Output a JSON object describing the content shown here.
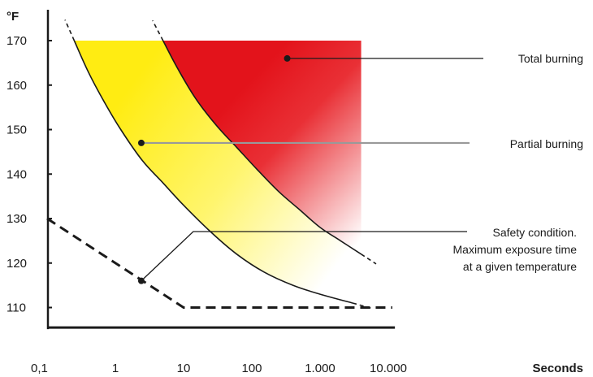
{
  "chart_data": {
    "type": "area",
    "y_unit": "°F",
    "x_unit": "Seconds",
    "x_scale": "log",
    "x_ticks": [
      "0,1",
      "1",
      "10",
      "100",
      "1.000",
      "10.000"
    ],
    "x_tick_values": [
      0.1,
      1,
      10,
      100,
      1000,
      10000
    ],
    "y_ticks": [
      "170",
      "160",
      "150",
      "140",
      "130",
      "120",
      "110"
    ],
    "y_tick_values": [
      170,
      160,
      150,
      140,
      130,
      120,
      110
    ],
    "xlim": [
      0.1,
      10000
    ],
    "ylim": [
      105,
      170
    ],
    "series": [
      {
        "name": "Total burning",
        "color": "#e8141c",
        "x": [
          5,
          8,
          15,
          30,
          60,
          120,
          250,
          500,
          1000,
          2000,
          4000
        ],
        "y": [
          170,
          164,
          157,
          151,
          146,
          141,
          136,
          132,
          128,
          125,
          122
        ]
      },
      {
        "name": "Partial burning",
        "color": "#ffec1a",
        "x": [
          0.25,
          0.4,
          0.7,
          1.2,
          2.5,
          5,
          10,
          25,
          60,
          150,
          400,
          1000,
          3000
        ],
        "y": [
          170,
          163,
          156,
          150,
          143,
          138,
          133,
          127,
          122,
          118,
          115,
          113,
          111
        ]
      },
      {
        "name": "Safety condition. Maximum exposure time at a given temperature",
        "x": [
          0.1,
          10,
          10000
        ],
        "y": [
          130,
          110,
          110
        ]
      }
    ],
    "annotations": [
      {
        "text": "Total burning",
        "x": 330,
        "y": 166
      },
      {
        "text": "Partial burning",
        "x": 2.4,
        "y": 147
      },
      {
        "lines": [
          "Safety condition.",
          "Maximum exposure time",
          "at a given temperature"
        ],
        "x": 2.4,
        "y": 116
      }
    ],
    "reference_line_y": 105.5
  }
}
